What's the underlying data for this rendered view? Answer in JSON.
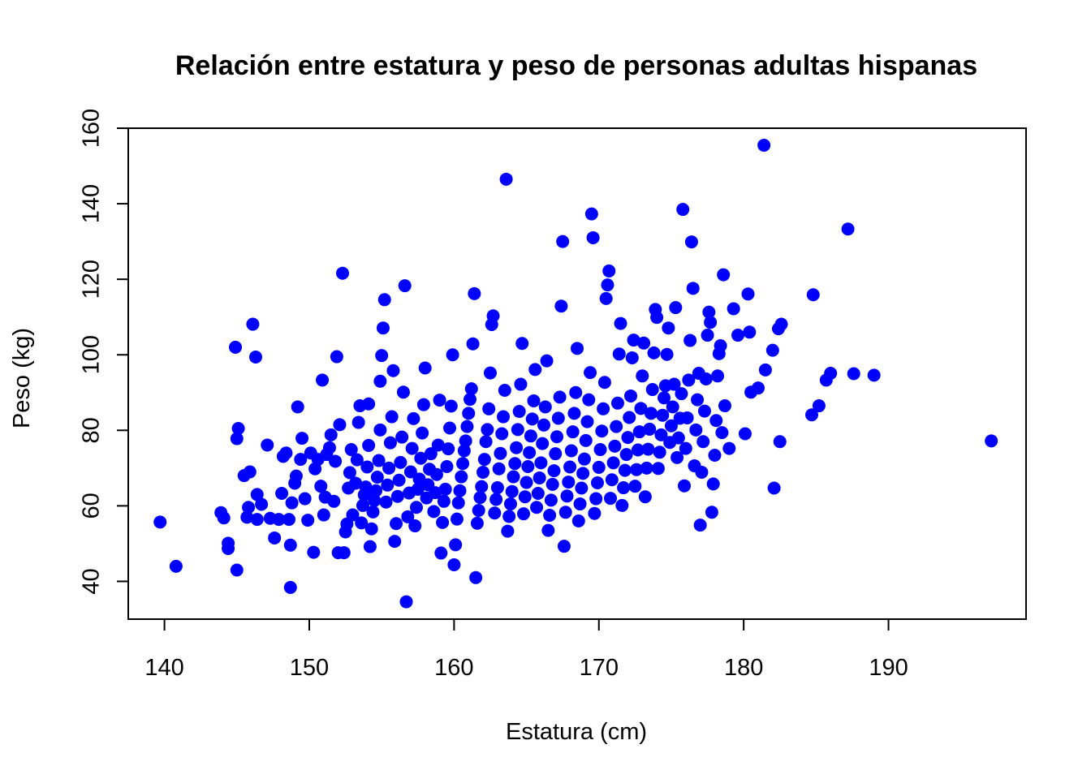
{
  "chart_data": {
    "type": "scatter",
    "title": "Relación entre estatura y peso de personas adultas hispanas",
    "xlabel": "Estatura (cm)",
    "ylabel": "Peso (kg)",
    "xlim": [
      137.5,
      199.5
    ],
    "ylim": [
      30,
      160
    ],
    "x_ticks": [
      140,
      150,
      160,
      170,
      180,
      190
    ],
    "y_ticks": [
      40,
      60,
      80,
      100,
      120,
      140,
      160
    ],
    "x_tick_labels": [
      "140",
      "150",
      "160",
      "170",
      "180",
      "190"
    ],
    "y_tick_labels": [
      "40",
      "60",
      "80",
      "100",
      "120",
      "140",
      "160"
    ],
    "grid": false,
    "legend": "none",
    "marker_color": "#0000ff",
    "points": [
      [
        139.7,
        55.7
      ],
      [
        140.8,
        44.0
      ],
      [
        143.9,
        58.2
      ],
      [
        144.1,
        56.8
      ],
      [
        144.4,
        50.1
      ],
      [
        144.4,
        48.7
      ],
      [
        144.9,
        102.0
      ],
      [
        145.0,
        77.8
      ],
      [
        145.1,
        80.5
      ],
      [
        145.0,
        43.0
      ],
      [
        145.5,
        68.0
      ],
      [
        145.7,
        57.0
      ],
      [
        145.8,
        59.6
      ],
      [
        145.9,
        69.0
      ],
      [
        146.1,
        108.1
      ],
      [
        146.3,
        99.4
      ],
      [
        146.4,
        63.0
      ],
      [
        146.4,
        56.4
      ],
      [
        146.7,
        60.4
      ],
      [
        147.1,
        76.1
      ],
      [
        147.3,
        56.7
      ],
      [
        147.6,
        51.5
      ],
      [
        147.9,
        56.4
      ],
      [
        148.1,
        63.3
      ],
      [
        148.2,
        73.1
      ],
      [
        148.4,
        74.0
      ],
      [
        148.6,
        56.4
      ],
      [
        148.7,
        49.6
      ],
      [
        148.8,
        60.8
      ],
      [
        148.7,
        38.4
      ],
      [
        149.0,
        66.0
      ],
      [
        149.1,
        67.9
      ],
      [
        149.2,
        86.2
      ],
      [
        149.4,
        72.3
      ],
      [
        149.5,
        77.9
      ],
      [
        149.7,
        61.9
      ],
      [
        149.9,
        56.2
      ],
      [
        150.1,
        74.0
      ],
      [
        150.3,
        47.7
      ],
      [
        150.4,
        69.8
      ],
      [
        150.6,
        72.3
      ],
      [
        150.8,
        65.2
      ],
      [
        150.9,
        93.3
      ],
      [
        151.0,
        57.6
      ],
      [
        151.1,
        62.3
      ],
      [
        151.2,
        73.6
      ],
      [
        151.4,
        75.4
      ],
      [
        151.5,
        78.8
      ],
      [
        151.7,
        61.2
      ],
      [
        151.8,
        71.8
      ],
      [
        151.9,
        99.5
      ],
      [
        152.0,
        47.6
      ],
      [
        152.1,
        81.5
      ],
      [
        152.3,
        121.6
      ],
      [
        152.4,
        47.6
      ],
      [
        152.5,
        53.1
      ],
      [
        152.6,
        55.2
      ],
      [
        152.7,
        64.7
      ],
      [
        152.8,
        68.8
      ],
      [
        152.9,
        74.9
      ],
      [
        153.0,
        57.6
      ],
      [
        153.2,
        66.0
      ],
      [
        153.3,
        72.2
      ],
      [
        153.4,
        82.1
      ],
      [
        153.5,
        86.5
      ],
      [
        153.6,
        55.5
      ],
      [
        153.7,
        60.1
      ],
      [
        153.8,
        62.9
      ],
      [
        153.9,
        65.0
      ],
      [
        154.0,
        70.3
      ],
      [
        154.1,
        76.0
      ],
      [
        154.1,
        87.0
      ],
      [
        154.2,
        49.2
      ],
      [
        154.3,
        53.9
      ],
      [
        154.4,
        58.4
      ],
      [
        154.5,
        61.4
      ],
      [
        154.6,
        64.0
      ],
      [
        154.7,
        67.6
      ],
      [
        154.8,
        72.0
      ],
      [
        154.9,
        80.1
      ],
      [
        154.9,
        93.0
      ],
      [
        155.0,
        99.8
      ],
      [
        155.1,
        107.1
      ],
      [
        155.2,
        114.6
      ],
      [
        155.3,
        61.0
      ],
      [
        155.4,
        65.5
      ],
      [
        155.5,
        70.0
      ],
      [
        155.6,
        76.7
      ],
      [
        155.7,
        83.6
      ],
      [
        155.8,
        95.8
      ],
      [
        155.9,
        50.6
      ],
      [
        156.0,
        55.3
      ],
      [
        156.1,
        62.5
      ],
      [
        156.2,
        66.8
      ],
      [
        156.3,
        71.5
      ],
      [
        156.4,
        78.2
      ],
      [
        156.5,
        90.1
      ],
      [
        156.6,
        118.3
      ],
      [
        156.7,
        34.6
      ],
      [
        156.8,
        57.1
      ],
      [
        156.9,
        63.4
      ],
      [
        157.0,
        69.0
      ],
      [
        157.1,
        75.2
      ],
      [
        157.2,
        83.1
      ],
      [
        157.3,
        54.7
      ],
      [
        157.4,
        59.6
      ],
      [
        157.5,
        64.4
      ],
      [
        157.6,
        67.1
      ],
      [
        157.7,
        72.6
      ],
      [
        157.8,
        79.3
      ],
      [
        157.9,
        86.8
      ],
      [
        158.0,
        96.5
      ],
      [
        158.1,
        62.1
      ],
      [
        158.2,
        65.6
      ],
      [
        158.3,
        69.7
      ],
      [
        158.4,
        73.8
      ],
      [
        158.6,
        58.5
      ],
      [
        158.7,
        63.5
      ],
      [
        158.8,
        68.3
      ],
      [
        158.9,
        76.1
      ],
      [
        159.0,
        88.0
      ],
      [
        159.1,
        47.5
      ],
      [
        159.2,
        55.6
      ],
      [
        159.3,
        61.2
      ],
      [
        159.4,
        64.4
      ],
      [
        159.5,
        70.4
      ],
      [
        159.6,
        75.1
      ],
      [
        159.7,
        80.6
      ],
      [
        159.8,
        86.4
      ],
      [
        159.9,
        100.0
      ],
      [
        160.0,
        44.4
      ],
      [
        160.1,
        49.7
      ],
      [
        160.2,
        56.5
      ],
      [
        160.3,
        60.8
      ],
      [
        160.4,
        64.0
      ],
      [
        160.5,
        67.7
      ],
      [
        160.6,
        71.2
      ],
      [
        160.7,
        74.6
      ],
      [
        160.8,
        77.2
      ],
      [
        160.9,
        81.0
      ],
      [
        161.0,
        84.5
      ],
      [
        161.1,
        88.2
      ],
      [
        161.2,
        91.0
      ],
      [
        161.3,
        102.9
      ],
      [
        161.4,
        116.2
      ],
      [
        161.5,
        41.0
      ],
      [
        161.6,
        55.4
      ],
      [
        161.7,
        58.8
      ],
      [
        161.8,
        62.2
      ],
      [
        161.9,
        65.1
      ],
      [
        162.0,
        68.9
      ],
      [
        162.1,
        72.3
      ],
      [
        162.2,
        77.0
      ],
      [
        162.3,
        80.2
      ],
      [
        162.4,
        85.7
      ],
      [
        162.5,
        95.2
      ],
      [
        162.6,
        108.0
      ],
      [
        162.7,
        110.3
      ],
      [
        162.8,
        58.1
      ],
      [
        162.9,
        61.7
      ],
      [
        163.0,
        64.8
      ],
      [
        163.1,
        69.8
      ],
      [
        163.2,
        73.9
      ],
      [
        163.3,
        79.1
      ],
      [
        163.4,
        83.6
      ],
      [
        163.5,
        90.6
      ],
      [
        163.6,
        146.5
      ],
      [
        163.7,
        53.3
      ],
      [
        163.8,
        57.2
      ],
      [
        163.9,
        60.5
      ],
      [
        164.0,
        63.8
      ],
      [
        164.1,
        67.7
      ],
      [
        164.2,
        71.2
      ],
      [
        164.3,
        75.4
      ],
      [
        164.4,
        80.2
      ],
      [
        164.5,
        85.0
      ],
      [
        164.6,
        92.2
      ],
      [
        164.7,
        103.0
      ],
      [
        164.8,
        57.9
      ],
      [
        164.9,
        62.4
      ],
      [
        165.0,
        66.2
      ],
      [
        165.1,
        70.4
      ],
      [
        165.2,
        74.1
      ],
      [
        165.3,
        78.5
      ],
      [
        165.4,
        83.0
      ],
      [
        165.5,
        87.8
      ],
      [
        165.6,
        96.1
      ],
      [
        165.7,
        59.6
      ],
      [
        165.8,
        63.3
      ],
      [
        165.9,
        67.4
      ],
      [
        166.0,
        71.4
      ],
      [
        166.1,
        76.5
      ],
      [
        166.2,
        81.4
      ],
      [
        166.3,
        86.2
      ],
      [
        166.4,
        98.4
      ],
      [
        166.5,
        53.5
      ],
      [
        166.6,
        57.5
      ],
      [
        166.7,
        61.5
      ],
      [
        166.8,
        65.7
      ],
      [
        166.9,
        69.3
      ],
      [
        167.0,
        73.8
      ],
      [
        167.1,
        78.3
      ],
      [
        167.2,
        83.2
      ],
      [
        167.3,
        88.8
      ],
      [
        167.4,
        112.9
      ],
      [
        167.5,
        130.0
      ],
      [
        167.6,
        49.3
      ],
      [
        167.7,
        58.3
      ],
      [
        167.8,
        62.6
      ],
      [
        167.9,
        66.3
      ],
      [
        168.0,
        70.3
      ],
      [
        168.1,
        74.6
      ],
      [
        168.2,
        79.6
      ],
      [
        168.3,
        84.5
      ],
      [
        168.4,
        90.0
      ],
      [
        168.5,
        101.7
      ],
      [
        168.6,
        56.0
      ],
      [
        168.7,
        60.5
      ],
      [
        168.8,
        64.7
      ],
      [
        168.9,
        68.6
      ],
      [
        169.0,
        72.4
      ],
      [
        169.1,
        77.3
      ],
      [
        169.2,
        82.3
      ],
      [
        169.3,
        88.1
      ],
      [
        169.4,
        95.3
      ],
      [
        169.5,
        137.3
      ],
      [
        169.6,
        131.0
      ],
      [
        169.7,
        58.0
      ],
      [
        169.8,
        61.9
      ],
      [
        169.9,
        66.1
      ],
      [
        170.0,
        70.2
      ],
      [
        170.1,
        74.9
      ],
      [
        170.2,
        79.8
      ],
      [
        170.3,
        85.7
      ],
      [
        170.4,
        92.7
      ],
      [
        170.5,
        114.9
      ],
      [
        170.6,
        118.5
      ],
      [
        170.7,
        122.2
      ],
      [
        170.8,
        62.0
      ],
      [
        170.9,
        66.9
      ],
      [
        171.0,
        71.4
      ],
      [
        171.1,
        75.8
      ],
      [
        171.2,
        81.0
      ],
      [
        171.3,
        87.2
      ],
      [
        171.4,
        100.2
      ],
      [
        171.5,
        108.3
      ],
      [
        171.6,
        60.1
      ],
      [
        171.7,
        64.8
      ],
      [
        171.8,
        69.4
      ],
      [
        171.9,
        73.6
      ],
      [
        172.0,
        78.1
      ],
      [
        172.1,
        83.4
      ],
      [
        172.2,
        89.1
      ],
      [
        172.3,
        99.2
      ],
      [
        172.4,
        103.9
      ],
      [
        172.5,
        65.2
      ],
      [
        172.6,
        69.6
      ],
      [
        172.7,
        74.8
      ],
      [
        172.8,
        79.6
      ],
      [
        172.9,
        85.8
      ],
      [
        173.0,
        94.4
      ],
      [
        173.1,
        103.1
      ],
      [
        173.2,
        62.4
      ],
      [
        173.3,
        70.0
      ],
      [
        173.4,
        75.0
      ],
      [
        173.5,
        80.3
      ],
      [
        173.6,
        84.5
      ],
      [
        173.7,
        90.8
      ],
      [
        173.8,
        100.5
      ],
      [
        173.9,
        112.0
      ],
      [
        174.0,
        109.9
      ],
      [
        174.1,
        69.9
      ],
      [
        174.2,
        74.2
      ],
      [
        174.3,
        78.8
      ],
      [
        174.4,
        84.0
      ],
      [
        174.5,
        88.6
      ],
      [
        174.6,
        91.8
      ],
      [
        174.7,
        100.1
      ],
      [
        174.8,
        107.1
      ],
      [
        174.9,
        76.8
      ],
      [
        175.0,
        81.2
      ],
      [
        175.1,
        86.2
      ],
      [
        175.2,
        92.2
      ],
      [
        175.3,
        112.5
      ],
      [
        175.4,
        72.8
      ],
      [
        175.5,
        78.0
      ],
      [
        175.6,
        83.2
      ],
      [
        175.7,
        89.7
      ],
      [
        175.8,
        138.5
      ],
      [
        175.9,
        65.3
      ],
      [
        176.0,
        75.2
      ],
      [
        176.1,
        83.3
      ],
      [
        176.2,
        93.3
      ],
      [
        176.3,
        103.8
      ],
      [
        176.4,
        129.9
      ],
      [
        176.5,
        117.6
      ],
      [
        176.6,
        70.6
      ],
      [
        176.7,
        80.1
      ],
      [
        176.8,
        88.1
      ],
      [
        176.9,
        95.1
      ],
      [
        177.0,
        54.9
      ],
      [
        177.1,
        68.9
      ],
      [
        177.2,
        77.0
      ],
      [
        177.3,
        85.1
      ],
      [
        177.4,
        93.6
      ],
      [
        177.5,
        105.2
      ],
      [
        177.6,
        111.3
      ],
      [
        177.7,
        108.6
      ],
      [
        177.8,
        58.3
      ],
      [
        177.9,
        65.8
      ],
      [
        178.0,
        73.4
      ],
      [
        178.1,
        82.6
      ],
      [
        178.2,
        94.4
      ],
      [
        178.3,
        100.3
      ],
      [
        178.4,
        102.4
      ],
      [
        178.5,
        79.4
      ],
      [
        178.6,
        121.2
      ],
      [
        178.7,
        86.5
      ],
      [
        179.0,
        75.2
      ],
      [
        179.3,
        112.2
      ],
      [
        179.6,
        105.2
      ],
      [
        180.1,
        79.1
      ],
      [
        180.3,
        116.1
      ],
      [
        180.4,
        106.0
      ],
      [
        180.5,
        90.1
      ],
      [
        181.0,
        91.2
      ],
      [
        181.4,
        155.5
      ],
      [
        181.5,
        96.0
      ],
      [
        182.0,
        101.2
      ],
      [
        182.1,
        64.7
      ],
      [
        182.4,
        106.9
      ],
      [
        182.6,
        108.1
      ],
      [
        182.5,
        77.0
      ],
      [
        184.7,
        84.1
      ],
      [
        184.8,
        115.9
      ],
      [
        185.2,
        86.5
      ],
      [
        185.7,
        93.3
      ],
      [
        186.0,
        95.1
      ],
      [
        187.2,
        133.3
      ],
      [
        187.6,
        95.0
      ],
      [
        189.0,
        94.6
      ],
      [
        197.1,
        77.2
      ]
    ]
  }
}
